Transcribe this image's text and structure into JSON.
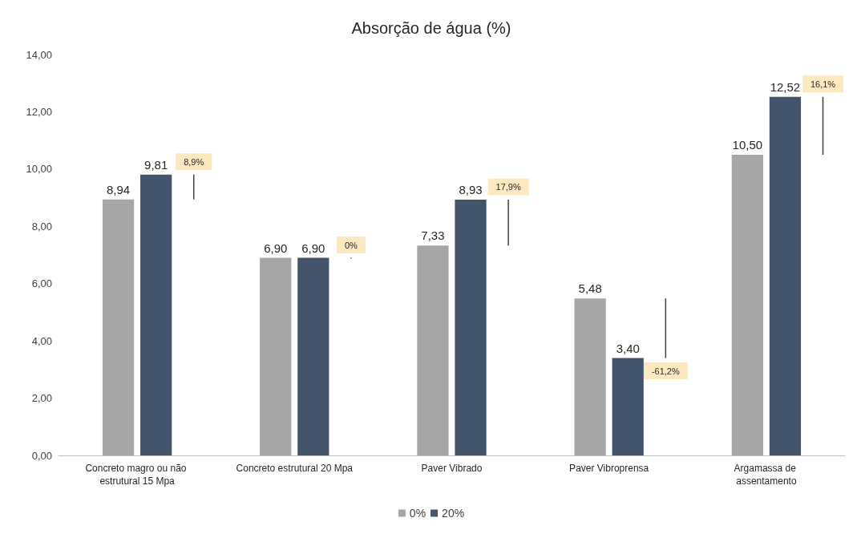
{
  "chart_data": {
    "type": "bar",
    "title": "Absorção de água (%)",
    "categories": [
      "Concreto magro ou não estrutural 15 Mpa",
      "Concreto estrutural 20 Mpa",
      "Paver Vibrado",
      "Paver Vibroprensa",
      "Argamassa de assentamento"
    ],
    "series": [
      {
        "name": "0%",
        "color": "#a6a6a6",
        "values": [
          8.94,
          6.9,
          7.33,
          5.48,
          10.5
        ],
        "value_labels": [
          "8,94",
          "6,90",
          "7,33",
          "5,48",
          "10,50"
        ]
      },
      {
        "name": "20%",
        "color": "#44546a",
        "values": [
          9.81,
          6.9,
          8.93,
          3.4,
          12.52
        ],
        "value_labels": [
          "9,81",
          "6,90",
          "8,93",
          "3,40",
          "12,52"
        ]
      },
      {
        "type": "bar",
        "color": "#404040",
        "base": [
          8.94,
          6.9,
          7.33,
          5.48,
          10.5
        ],
        "values": [
          0.87,
          0,
          1.6,
          -2.08,
          2.02
        ]
      }
    ],
    "annotations": [
      "8,9%",
      "0%",
      "17,9%",
      "-61,2%",
      "16,1%"
    ],
    "ylim": [
      0,
      14
    ],
    "yticks": [
      {
        "value": 0,
        "label": "0,00"
      },
      {
        "value": 2,
        "label": "2,00"
      },
      {
        "value": 4,
        "label": "4,00"
      },
      {
        "value": 6,
        "label": "6,00"
      },
      {
        "value": 8,
        "label": "8,00"
      },
      {
        "value": 10,
        "label": "10,00"
      },
      {
        "value": 12,
        "label": "12,00"
      },
      {
        "value": 14,
        "label": "14,00"
      }
    ],
    "grid": false,
    "legend": "bottom"
  }
}
